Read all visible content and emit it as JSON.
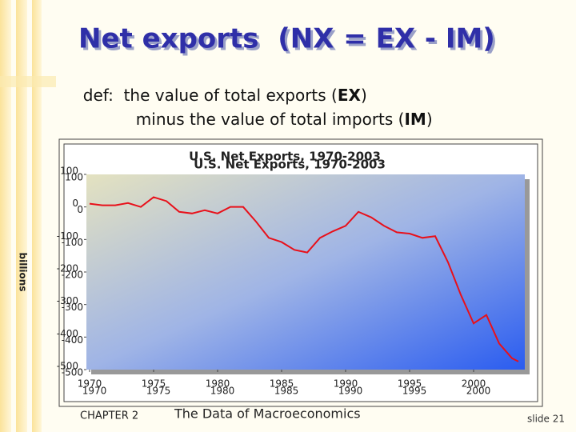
{
  "slide": {
    "title": "Net exports  (NX = EX - IM)",
    "definition": {
      "line1": [
        "def:  the value of total exports (",
        "EX",
        ")"
      ],
      "line2": [
        "minus the value of total imports (",
        "IM",
        ")"
      ]
    },
    "footer": {
      "chapter": "CHAPTER 2",
      "subject": "The Data of Macroeconomics",
      "slide": "slide 21"
    }
  },
  "chart_data": {
    "type": "line",
    "title": "U.S. Net Exports, 1970-2003",
    "y_label": "billions",
    "x": [
      1970,
      1971,
      1972,
      1973,
      1974,
      1975,
      1976,
      1977,
      1978,
      1979,
      1980,
      1981,
      1982,
      1983,
      1984,
      1985,
      1986,
      1987,
      1988,
      1989,
      1990,
      1991,
      1992,
      1993,
      1994,
      1995,
      1996,
      1997,
      1998,
      1999,
      2000,
      2001,
      2002,
      2003,
      2003.5
    ],
    "series": [
      {
        "name": "Net exports",
        "color": "#e8101a",
        "values": [
          10,
          5,
          5,
          12,
          0,
          30,
          18,
          -15,
          -20,
          -10,
          -20,
          0,
          0,
          -45,
          -95,
          -108,
          -132,
          -140,
          -95,
          -75,
          -58,
          -15,
          -32,
          -58,
          -78,
          -82,
          -95,
          -90,
          -170,
          -270,
          -358,
          -332,
          -420,
          -465,
          -475
        ]
      }
    ],
    "xlim": [
      1970,
      2004
    ],
    "xticks": [
      1970,
      1975,
      1980,
      1985,
      1990,
      1995,
      2000
    ],
    "ylim": [
      -500,
      100
    ],
    "yticks": [
      100,
      0,
      -100,
      -200,
      -300,
      -400,
      -500
    ]
  }
}
